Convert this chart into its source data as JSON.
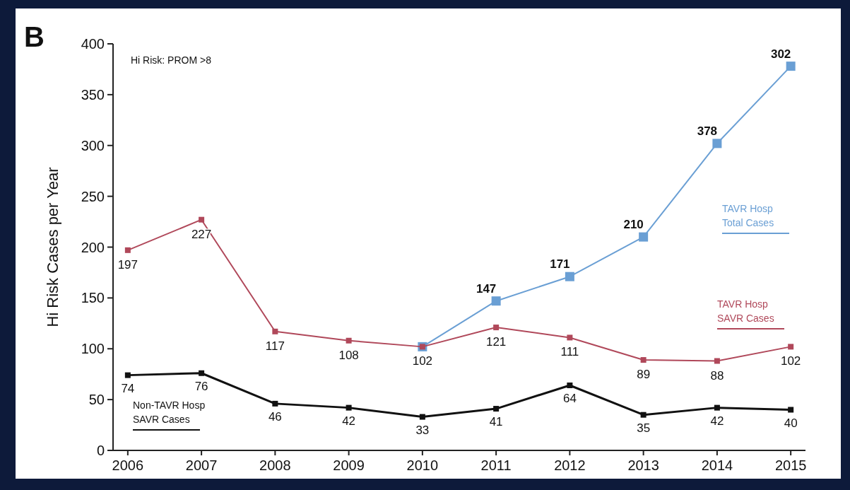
{
  "chart_data": {
    "type": "line",
    "ylabel": "Hi Risk Cases per Year",
    "categories": [
      "2006",
      "2007",
      "2008",
      "2009",
      "2010",
      "2011",
      "2012",
      "2013",
      "2014",
      "2015"
    ],
    "ylim": [
      0,
      400
    ],
    "yticks": [
      0,
      50,
      100,
      150,
      200,
      250,
      300,
      350,
      400
    ],
    "marker": "square",
    "legend": false,
    "annotations": [
      "B",
      "Hi Risk: PROM >8",
      {
        "text": "378",
        "x": "2014",
        "y": 302
      },
      {
        "text": "302",
        "x": "2015",
        "y": 378
      }
    ],
    "series": [
      {
        "name": "TAVR Hosp Total Cases",
        "color": "#6a9fd4",
        "values": [
          null,
          null,
          null,
          null,
          102,
          147,
          171,
          210,
          302,
          378
        ],
        "value_labels": [
          null,
          null,
          null,
          null,
          null,
          "147",
          "171",
          "210",
          null,
          null
        ]
      },
      {
        "name": "TAVR Hosp SAVR Cases",
        "color": "#b0485a",
        "values": [
          197,
          227,
          117,
          108,
          102,
          121,
          111,
          89,
          88,
          102
        ],
        "value_labels": [
          "197",
          "227",
          "117",
          "108",
          "102",
          "121",
          "111",
          "89",
          "88",
          "102"
        ]
      },
      {
        "name": "Non-TAVR Hosp SAVR Cases",
        "color": "#111111",
        "values": [
          74,
          76,
          46,
          42,
          33,
          41,
          64,
          35,
          42,
          40
        ],
        "value_labels": [
          "74",
          "76",
          "46",
          "42",
          "33",
          "41",
          "64",
          "35",
          "42",
          "40"
        ]
      }
    ]
  }
}
